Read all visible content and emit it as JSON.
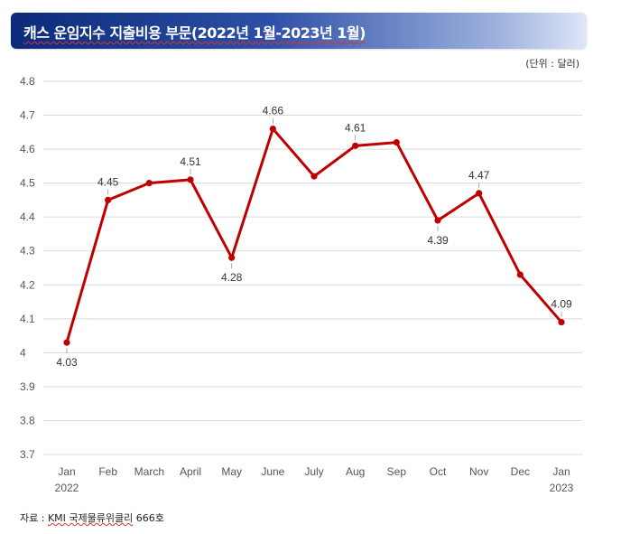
{
  "title": "캐스 운임지수 지출비용 부문(2022년 1월-2023년 1월)",
  "unit": "(단위 : 달러)",
  "source_prefix": "자료 : ",
  "source_link": "KMI 국제물류위클리",
  "source_suffix": " 666호",
  "colors": {
    "line": "#c00000",
    "grid": "#d9d9d9"
  },
  "chart_data": {
    "type": "line",
    "categories": [
      "Jan",
      "Feb",
      "March",
      "April",
      "May",
      "June",
      "July",
      "Aug",
      "Sep",
      "Oct",
      "Nov",
      "Dec",
      "Jan"
    ],
    "category_years": [
      "2022",
      "",
      "",
      "",
      "",
      "",
      "",
      "",
      "",
      "",
      "",
      "",
      "2023"
    ],
    "series": [
      {
        "values": [
          4.03,
          4.45,
          4.5,
          4.51,
          4.28,
          4.66,
          4.52,
          4.61,
          4.62,
          4.39,
          4.47,
          4.23,
          4.09
        ]
      }
    ],
    "data_labels": [
      "4.03",
      "4.45",
      "",
      "4.51",
      "4.28",
      "4.66",
      "",
      "4.61",
      "",
      "4.39",
      "4.47",
      "",
      "4.09"
    ],
    "label_position": [
      "below",
      "above",
      "",
      "above",
      "below",
      "above",
      "",
      "above",
      "",
      "below",
      "above",
      "",
      "above"
    ],
    "yticks": [
      "3.7",
      "3.8",
      "3.9",
      "4",
      "4.1",
      "4.2",
      "4.3",
      "4.4",
      "4.5",
      "4.6",
      "4.7",
      "4.8"
    ],
    "ylim": [
      3.7,
      4.8
    ],
    "grid": true,
    "legend": "none"
  }
}
